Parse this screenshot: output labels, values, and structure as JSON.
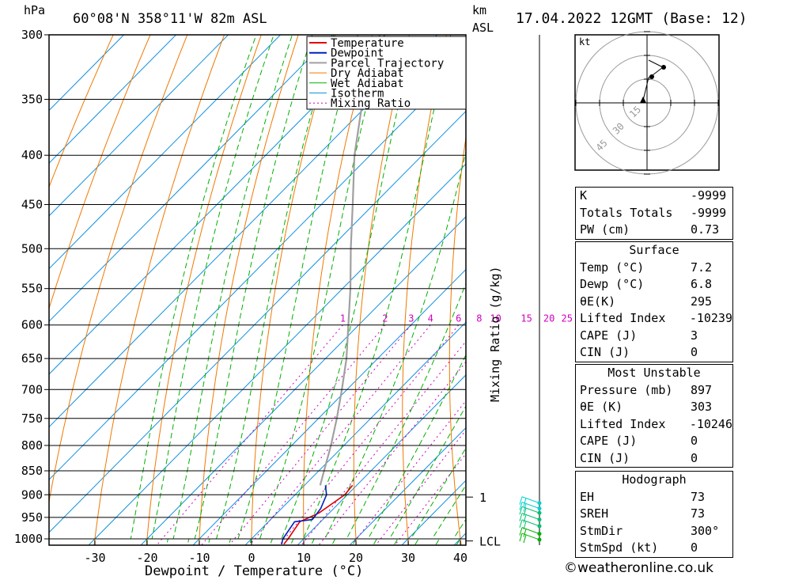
{
  "header": {
    "hpa_label": "hPa",
    "location": "60°08'N  358°11'W  82m  ASL",
    "km_label": "km",
    "asl_label": "ASL",
    "datetime": "17.04.2022  12GMT  (Base: 12)"
  },
  "chart_data": {
    "type": "line",
    "xlabel": "Dewpoint / Temperature (°C)",
    "ylabel": "hPa",
    "right_axis_label": "Mixing Ratio (g/kg)",
    "x_ticks": [
      -30,
      -20,
      -10,
      0,
      10,
      20,
      30,
      40
    ],
    "x_tick_labels": [
      "-30",
      "-20",
      "-10",
      "0",
      "10",
      "20",
      "30",
      "40"
    ],
    "pressure_levels": [
      300,
      350,
      400,
      450,
      500,
      550,
      600,
      650,
      700,
      750,
      800,
      850,
      900,
      950,
      1000
    ],
    "mixing_ratio_labels": [
      "1",
      "2",
      "3",
      "4",
      "6",
      "8",
      "10",
      "15",
      "20",
      "25"
    ],
    "mixing_ratio_values": [
      1,
      2,
      3,
      4,
      6,
      8,
      10,
      15,
      20,
      25
    ],
    "km_ticks": [
      {
        "label": "1",
        "p": 905
      },
      {
        "label": "LCL",
        "p": 1005
      }
    ],
    "legend": [
      "Temperature",
      "Dewpoint",
      "Parcel Trajectory",
      "Dry Adiabat",
      "Wet Adiabat",
      "Isotherm",
      "Mixing Ratio"
    ],
    "colors": {
      "temperature": "#e00000",
      "dewpoint": "#0020c0",
      "parcel": "#a0a0a0",
      "dry_adiabat": "#f07800",
      "wet_adiabat": "#00b000",
      "isotherm": "#1090e0",
      "mixing_ratio": "#d000c0"
    },
    "series": [
      {
        "name": "Temperature",
        "points": [
          [
            1013,
            7.2
          ],
          [
            1000,
            7.0
          ],
          [
            960,
            6.0
          ],
          [
            940,
            8.0
          ],
          [
            900,
            9.5
          ],
          [
            880,
            9.2
          ]
        ]
      },
      {
        "name": "Dewpoint",
        "points": [
          [
            1013,
            6.8
          ],
          [
            1000,
            6.0
          ],
          [
            960,
            5.0
          ],
          [
            955,
            8.0
          ],
          [
            930,
            7.5
          ],
          [
            900,
            6.0
          ],
          [
            880,
            4.0
          ]
        ]
      },
      {
        "name": "Parcel Trajectory",
        "points": [
          [
            880,
            3.0
          ],
          [
            850,
            1.0
          ],
          [
            800,
            -2.5
          ],
          [
            750,
            -6.5
          ],
          [
            700,
            -11.0
          ],
          [
            650,
            -16.0
          ],
          [
            600,
            -22.0
          ],
          [
            550,
            -28.5
          ],
          [
            500,
            -36.0
          ],
          [
            450,
            -44.0
          ],
          [
            400,
            -53.0
          ],
          [
            350,
            -62.0
          ],
          [
            300,
            -71.0
          ]
        ]
      }
    ]
  },
  "hodograph": {
    "unit": "kt",
    "ring_labels": [
      "15",
      "30",
      "45"
    ]
  },
  "indices": {
    "k": {
      "label": "K",
      "value": "-9999"
    },
    "tt": {
      "label": "Totals Totals",
      "value": "-9999"
    },
    "pw": {
      "label": "PW (cm)",
      "value": "0.73"
    }
  },
  "surface": {
    "title": "Surface",
    "temp": {
      "label": "Temp (°C)",
      "value": "7.2"
    },
    "dewp": {
      "label": "Dewp (°C)",
      "value": "6.8"
    },
    "theta": {
      "label": "θE(K)",
      "value": "295"
    },
    "li": {
      "label": "Lifted Index",
      "value": "-10239"
    },
    "cape": {
      "label": "CAPE (J)",
      "value": "3"
    },
    "cin": {
      "label": "CIN (J)",
      "value": "0"
    }
  },
  "most_unstable": {
    "title": "Most Unstable",
    "pressure": {
      "label": "Pressure (mb)",
      "value": "897"
    },
    "theta": {
      "label": "θE (K)",
      "value": "303"
    },
    "li": {
      "label": "Lifted Index",
      "value": "-10246"
    },
    "cape": {
      "label": "CAPE (J)",
      "value": "0"
    },
    "cin": {
      "label": "CIN (J)",
      "value": "0"
    }
  },
  "hodo_table": {
    "title": "Hodograph",
    "eh": {
      "label": "EH",
      "value": "73"
    },
    "sreh": {
      "label": "SREH",
      "value": "73"
    },
    "stmdir": {
      "label": "StmDir",
      "value": "300°"
    },
    "stmspd": {
      "label": "StmSpd (kt)",
      "value": "0"
    }
  },
  "credit": "©weatheronline.co.uk"
}
